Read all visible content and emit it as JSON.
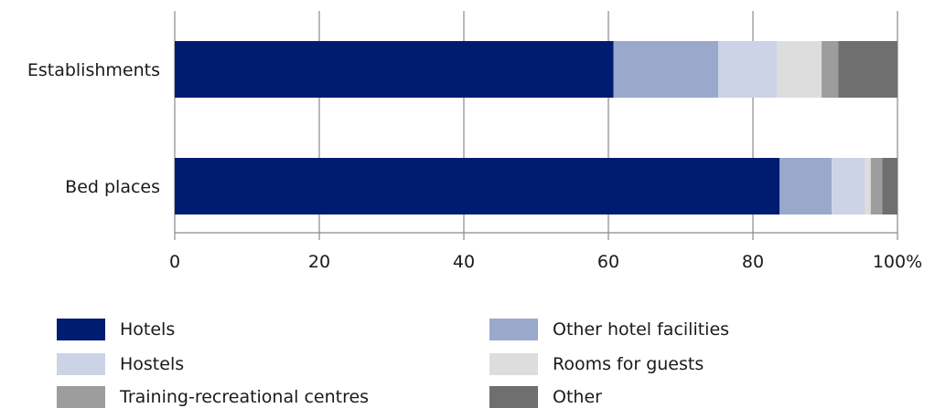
{
  "chart_data": {
    "type": "bar",
    "orientation": "horizontal",
    "stacked": true,
    "categories": [
      "Establishments",
      "Bed places"
    ],
    "series": [
      {
        "name": "Hotels",
        "color": "#001c71",
        "values": [
          60.7,
          83.7
        ]
      },
      {
        "name": "Other hotel facilities",
        "color": "#9aa8cc",
        "values": [
          14.5,
          7.2
        ]
      },
      {
        "name": "Hostels",
        "color": "#ccd3e7",
        "values": [
          8.1,
          4.6
        ]
      },
      {
        "name": "Rooms for guests",
        "color": "#dcdddc",
        "values": [
          6.2,
          0.8
        ]
      },
      {
        "name": "Training-recreational centres",
        "color": "#9d9d9d",
        "values": [
          2.3,
          1.6
        ]
      },
      {
        "name": "Other",
        "color": "#6f6f6f",
        "values": [
          8.2,
          2.1
        ]
      }
    ],
    "xlim": [
      0,
      100
    ],
    "xticks": [
      "0",
      "20",
      "40",
      "60",
      "80",
      "100%"
    ],
    "grid": true,
    "legend_position": "bottom"
  }
}
